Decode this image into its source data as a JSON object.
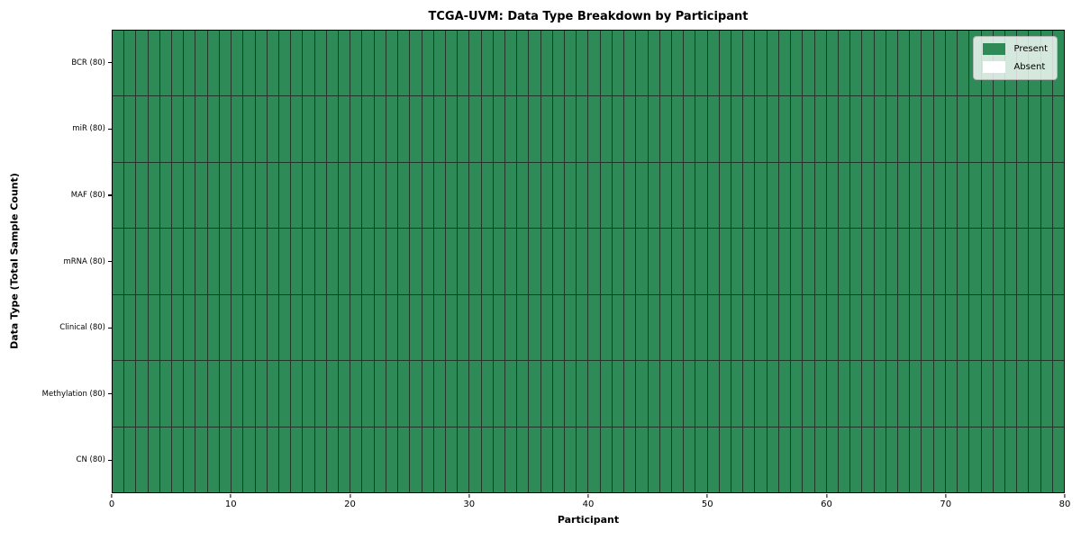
{
  "title": "TCGA-UVM: Data Type Breakdown by Participant",
  "chart_data": {
    "type": "heatmap",
    "title": "TCGA-UVM: Data Type Breakdown by Participant",
    "xlabel": "Participant",
    "ylabel": "Data Type (Total Sample Count)",
    "xlim": [
      0,
      80
    ],
    "x_ticks": [
      0,
      10,
      20,
      30,
      40,
      50,
      60,
      70,
      80
    ],
    "n_participants": 80,
    "grid": true,
    "legend_position": "upper right",
    "rows": [
      {
        "label": "BCR (80)",
        "data_type": "BCR",
        "total": 80,
        "present": 80,
        "absent": 0
      },
      {
        "label": "miR (80)",
        "data_type": "miR",
        "total": 80,
        "present": 80,
        "absent": 0
      },
      {
        "label": "MAF (80)",
        "data_type": "MAF",
        "total": 80,
        "present": 80,
        "absent": 0
      },
      {
        "label": "mRNA (80)",
        "data_type": "mRNA",
        "total": 80,
        "present": 80,
        "absent": 0
      },
      {
        "label": "Clinical (80)",
        "data_type": "Clinical",
        "total": 80,
        "present": 80,
        "absent": 0
      },
      {
        "label": "Methylation (80)",
        "data_type": "Methylation",
        "total": 80,
        "present": 80,
        "absent": 0
      },
      {
        "label": "CN (80)",
        "data_type": "CN",
        "total": 80,
        "present": 80,
        "absent": 0
      }
    ],
    "legend": [
      {
        "label": "Present",
        "color": "#2e8b57"
      },
      {
        "label": "Absent",
        "color": "#ffffff"
      }
    ],
    "colors": {
      "present": "#2e8b57",
      "absent": "#ffffff",
      "cell_edge": "#223529",
      "spine": "#000000"
    }
  }
}
